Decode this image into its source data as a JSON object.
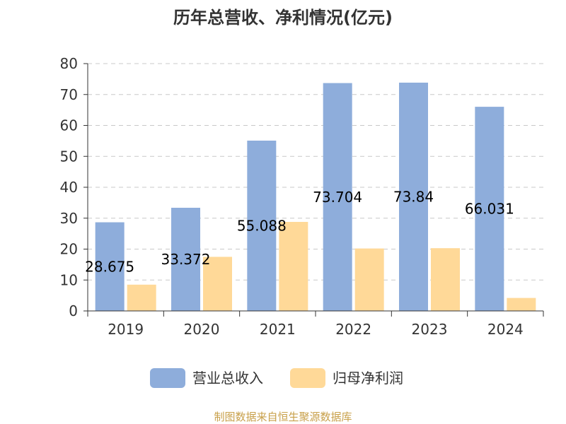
{
  "chart_data": {
    "type": "bar",
    "title": "历年总营收、净利情况(亿元)",
    "categories": [
      "2019",
      "2020",
      "2021",
      "2022",
      "2023",
      "2024"
    ],
    "series": [
      {
        "name": "营业总收入",
        "color": "#8eaddb",
        "values": [
          28.675,
          33.372,
          55.088,
          73.704,
          73.84,
          66.031
        ],
        "data_labels": [
          "28.675",
          "33.372",
          "55.088",
          "73.704",
          "73.84",
          "66.031"
        ]
      },
      {
        "name": "归母净利润",
        "color": "#ffd998",
        "values": [
          8.5,
          17.5,
          28.8,
          20.2,
          20.3,
          4.2
        ]
      }
    ],
    "ylim": [
      0,
      80
    ],
    "yticks": [
      "0",
      "10",
      "20",
      "30",
      "40",
      "50",
      "60",
      "70",
      "80"
    ],
    "xlabel": "",
    "ylabel": "",
    "grid": "horizontal dashed",
    "legend_position": "bottom"
  },
  "source_text": "制图数据来自恒生聚源数据库",
  "source_color": "#c8a04a"
}
